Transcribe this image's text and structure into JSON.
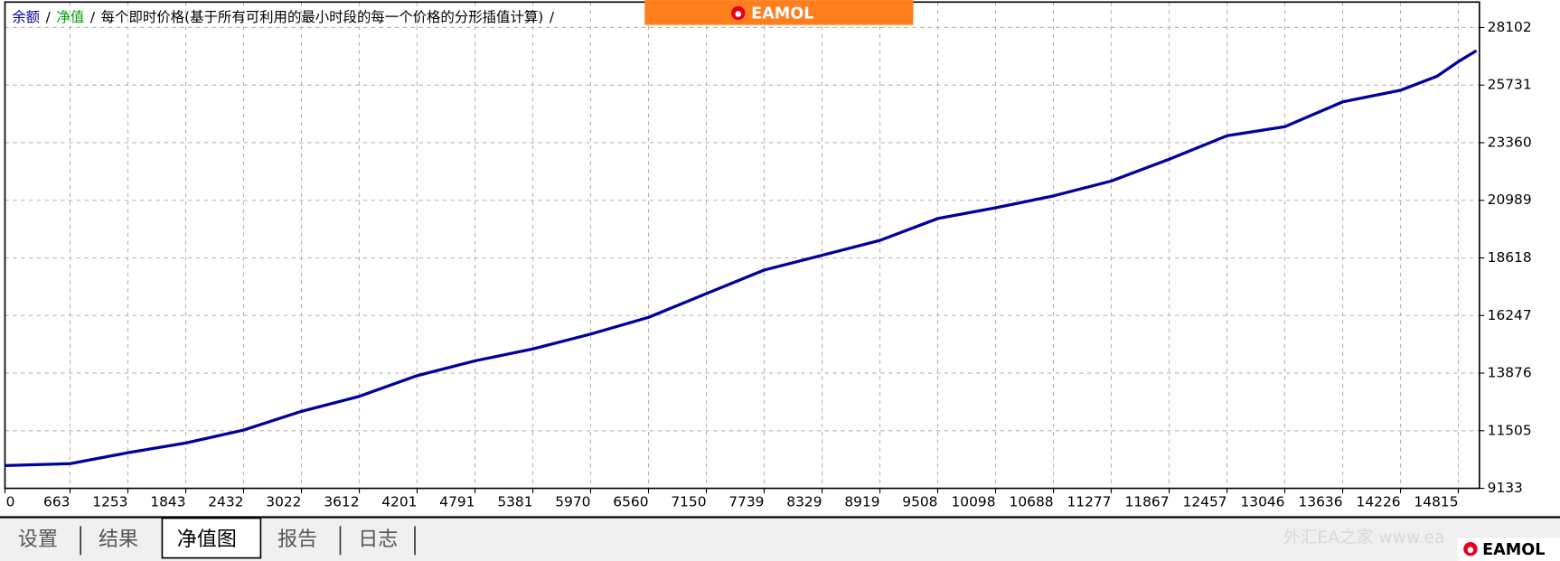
{
  "chart_data": {
    "type": "line",
    "legend_separator": "/",
    "series": [
      {
        "name": "余额",
        "color": "#00009c",
        "values": [
          10070,
          10150,
          10600,
          11000,
          11530,
          12300,
          12920,
          13770,
          14380,
          14870,
          15480,
          16170,
          17150,
          18120,
          18730,
          19340,
          20240,
          20680,
          21170,
          21780,
          22680,
          23650,
          24020,
          25040,
          25520,
          26100,
          26700,
          27150
        ]
      }
    ],
    "legend_extra": [
      {
        "text": "净值",
        "color": "#00a000"
      },
      {
        "text": "每个即时价格(基于所有可利用的最小时段的每一个价格的分形插值计算)",
        "color": "#000000"
      }
    ],
    "x": [
      0,
      663,
      1253,
      1843,
      2432,
      3022,
      3612,
      4201,
      4791,
      5381,
      5970,
      6560,
      7150,
      7739,
      8329,
      8919,
      9508,
      10098,
      10688,
      11277,
      11867,
      12457,
      13046,
      13636,
      14226,
      14600,
      14815,
      15000
    ],
    "xlim": [
      0,
      15030
    ],
    "ylim": [
      9133,
      29150
    ],
    "xticks": [
      0,
      663,
      1253,
      1843,
      2432,
      3022,
      3612,
      4201,
      4791,
      5381,
      5970,
      6560,
      7150,
      7739,
      8329,
      8919,
      9508,
      10098,
      10688,
      11277,
      11867,
      12457,
      13046,
      13636,
      14226,
      14815
    ],
    "yticks": [
      9133,
      11505,
      13876,
      16247,
      18618,
      20989,
      23360,
      25731,
      28102
    ],
    "grid": true
  },
  "banner": {
    "logo": "EAMOL"
  },
  "tabs": [
    "设置",
    "结果",
    "净值图",
    "报告",
    "日志"
  ],
  "active_tab": 2,
  "watermark": "外汇EA之家 www.ea"
}
